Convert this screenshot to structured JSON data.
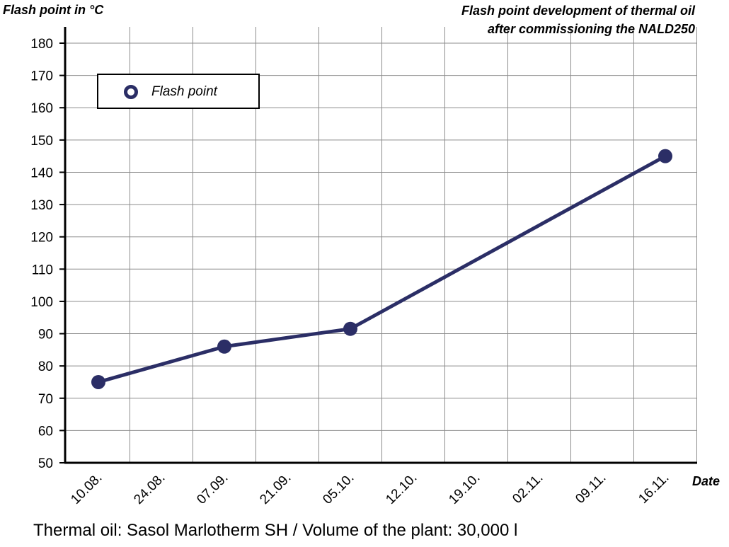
{
  "chart_data": {
    "type": "line",
    "title_lines": [
      "Flash point development of thermal oil",
      "after commissioning the NALD250"
    ],
    "xlabel": "Date",
    "ylabel": "Flash point in °C",
    "categories": [
      "10.08.",
      "24.08.",
      "07.09.",
      "21.09.",
      "05.10.",
      "12.10.",
      "19.10.",
      "02.11.",
      "09.11.",
      "16.11."
    ],
    "yticks": [
      50,
      60,
      70,
      80,
      90,
      100,
      110,
      120,
      130,
      140,
      150,
      160,
      170,
      180
    ],
    "ylim": [
      50,
      185
    ],
    "grid": true,
    "legend_position": "top-left",
    "series": [
      {
        "name": "Flash point",
        "color": "#2b2e66",
        "points": [
          {
            "x": "10.08.",
            "y": 75
          },
          {
            "x": "07.09.",
            "y": 86
          },
          {
            "x": "05.10.",
            "y": 91.5
          },
          {
            "x": "16.11.",
            "y": 145
          }
        ]
      }
    ],
    "caption": "Thermal oil: Sasol Marlotherm SH / Volume of the plant: 30,000 l"
  }
}
